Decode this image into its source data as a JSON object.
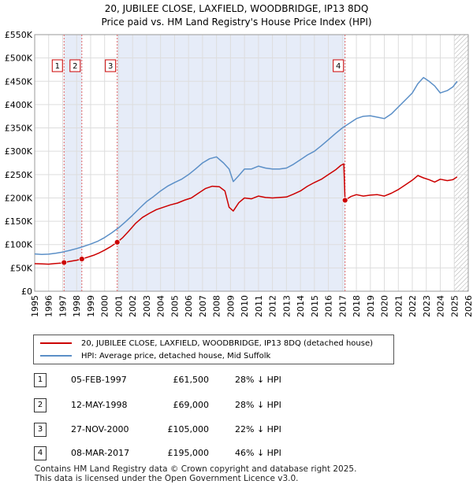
{
  "chart_data": {
    "type": "line",
    "title": "20, JUBILEE CLOSE, LAXFIELD, WOODBRIDGE, IP13 8DQ",
    "subtitle": "Price paid vs. HM Land Registry's House Price Index (HPI)",
    "xlabel": "",
    "ylabel": "",
    "xlim": [
      1995,
      2026
    ],
    "ylim": [
      0,
      550000
    ],
    "grid": true,
    "y_ticks": [
      0,
      50000,
      100000,
      150000,
      200000,
      250000,
      300000,
      350000,
      400000,
      450000,
      500000,
      550000
    ],
    "y_tick_labels": [
      "£0",
      "£50K",
      "£100K",
      "£150K",
      "£200K",
      "£250K",
      "£300K",
      "£350K",
      "£400K",
      "£450K",
      "£500K",
      "£550K"
    ],
    "x_ticks": [
      1995,
      1996,
      1997,
      1998,
      1999,
      2000,
      2001,
      2002,
      2003,
      2004,
      2005,
      2006,
      2007,
      2008,
      2009,
      2010,
      2011,
      2012,
      2013,
      2014,
      2015,
      2016,
      2017,
      2018,
      2019,
      2020,
      2021,
      2022,
      2023,
      2024,
      2025,
      2026
    ],
    "x_tick_labels": [
      "1995",
      "1996",
      "1997",
      "1998",
      "1999",
      "2000",
      "2001",
      "2002",
      "2003",
      "2004",
      "2005",
      "2006",
      "2007",
      "2008",
      "2009",
      "2010",
      "2011",
      "2012",
      "2013",
      "2014",
      "2015",
      "2016",
      "2017",
      "2018",
      "2019",
      "2020",
      "2021",
      "2022",
      "2023",
      "2024",
      "2025",
      "2026"
    ],
    "shaded_periods": [
      [
        1997.1,
        1998.37
      ],
      [
        2000.9,
        2017.19
      ]
    ],
    "hatched_after": 2025.0,
    "series": [
      {
        "name": "20, JUBILEE CLOSE, LAXFIELD, WOODBRIDGE, IP13 8DQ (detached house)",
        "color": "#cc0000",
        "x": [
          1995.0,
          1995.5,
          1996.0,
          1996.5,
          1997.0,
          1997.1,
          1997.5,
          1998.0,
          1998.37,
          1998.8,
          1999.2,
          1999.6,
          2000.0,
          2000.4,
          2000.9,
          2001.3,
          2001.7,
          2002.2,
          2002.7,
          2003.2,
          2003.7,
          2004.2,
          2004.7,
          2005.2,
          2005.7,
          2006.2,
          2006.7,
          2007.2,
          2007.7,
          2008.2,
          2008.6,
          2008.9,
          2009.2,
          2009.6,
          2010.0,
          2010.5,
          2011.0,
          2011.5,
          2012.0,
          2012.5,
          2013.0,
          2013.5,
          2014.0,
          2014.5,
          2015.0,
          2015.5,
          2016.0,
          2016.5,
          2016.9,
          2017.1,
          2017.19,
          2017.6,
          2018.0,
          2018.5,
          2019.0,
          2019.5,
          2020.0,
          2020.5,
          2021.0,
          2021.5,
          2022.0,
          2022.4,
          2022.8,
          2023.2,
          2023.6,
          2024.0,
          2024.5,
          2024.9,
          2025.2
        ],
        "values": [
          59000,
          58500,
          58000,
          59500,
          60500,
          61500,
          64000,
          66500,
          69000,
          73000,
          77000,
          82000,
          88000,
          95000,
          105000,
          115000,
          128000,
          145000,
          158000,
          167000,
          175000,
          180000,
          185000,
          189000,
          195000,
          200000,
          210000,
          220000,
          225000,
          224000,
          215000,
          180000,
          172000,
          190000,
          200000,
          198000,
          204000,
          201000,
          200000,
          201000,
          202000,
          208000,
          215000,
          225000,
          233000,
          240000,
          250000,
          260000,
          270000,
          273000,
          195000,
          203000,
          207000,
          204000,
          206000,
          207000,
          204000,
          210000,
          218000,
          228000,
          238000,
          248000,
          243000,
          239000,
          234000,
          240000,
          237000,
          239000,
          245000
        ]
      },
      {
        "name": "HPI: Average price, detached house, Mid Suffolk",
        "color": "#5b8fc7",
        "x": [
          1995.0,
          1995.5,
          1996.0,
          1996.5,
          1997.0,
          1997.5,
          1998.0,
          1998.5,
          1999.0,
          1999.5,
          2000.0,
          2000.5,
          2001.0,
          2001.5,
          2002.0,
          2002.5,
          2003.0,
          2003.5,
          2004.0,
          2004.5,
          2005.0,
          2005.5,
          2006.0,
          2006.5,
          2007.0,
          2007.5,
          2008.0,
          2008.5,
          2008.9,
          2009.2,
          2009.6,
          2010.0,
          2010.5,
          2011.0,
          2011.5,
          2012.0,
          2012.5,
          2013.0,
          2013.5,
          2014.0,
          2014.5,
          2015.0,
          2015.5,
          2016.0,
          2016.5,
          2017.0,
          2017.5,
          2018.0,
          2018.5,
          2019.0,
          2019.5,
          2020.0,
          2020.5,
          2021.0,
          2021.5,
          2022.0,
          2022.4,
          2022.8,
          2023.2,
          2023.6,
          2024.0,
          2024.5,
          2024.9,
          2025.2
        ],
        "values": [
          80000,
          79000,
          79500,
          81500,
          84000,
          87500,
          91500,
          96000,
          101000,
          107000,
          115000,
          125000,
          136000,
          149000,
          163000,
          178000,
          192000,
          203000,
          215000,
          225000,
          233000,
          240000,
          250000,
          262000,
          275000,
          284000,
          288000,
          275000,
          262000,
          235000,
          248000,
          262000,
          262000,
          268000,
          264000,
          262000,
          262000,
          264000,
          272000,
          282000,
          292000,
          300000,
          312000,
          325000,
          338000,
          350000,
          360000,
          370000,
          375000,
          376000,
          373000,
          370000,
          380000,
          395000,
          410000,
          425000,
          445000,
          458000,
          450000,
          440000,
          425000,
          430000,
          438000,
          450000
        ]
      }
    ],
    "markers": [
      {
        "label": "1",
        "x": 1997.1,
        "value": 61500
      },
      {
        "label": "2",
        "x": 1998.37,
        "value": 69000
      },
      {
        "label": "3",
        "x": 2000.9,
        "value": 105000
      },
      {
        "label": "4",
        "x": 2017.19,
        "value": 195000
      }
    ]
  },
  "legend": {
    "property_label": "20, JUBILEE CLOSE, LAXFIELD, WOODBRIDGE, IP13 8DQ (detached house)",
    "hpi_label": "HPI: Average price, detached house, Mid Suffolk"
  },
  "transactions": [
    {
      "num": "1",
      "date": "05-FEB-1997",
      "price": "£61,500",
      "hpi": "28% ↓ HPI"
    },
    {
      "num": "2",
      "date": "12-MAY-1998",
      "price": "£69,000",
      "hpi": "28% ↓ HPI"
    },
    {
      "num": "3",
      "date": "27-NOV-2000",
      "price": "£105,000",
      "hpi": "22% ↓ HPI"
    },
    {
      "num": "4",
      "date": "08-MAR-2017",
      "price": "£195,000",
      "hpi": "46% ↓ HPI"
    }
  ],
  "footer": {
    "line1": "Contains HM Land Registry data © Crown copyright and database right 2025.",
    "line2": "This data is licensed under the Open Government Licence v3.0."
  }
}
